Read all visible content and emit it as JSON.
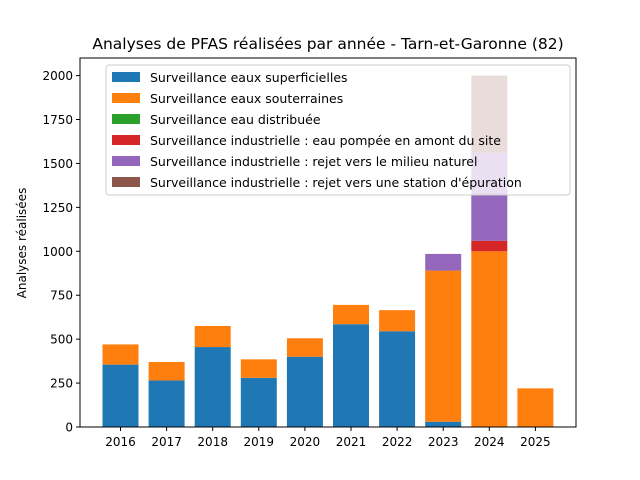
{
  "chart_data": {
    "type": "bar",
    "stacked": true,
    "title": "Analyses de PFAS réalisées par année - Tarn-et-Garonne (82)",
    "xlabel": "",
    "ylabel": "Analyses réalisées",
    "categories": [
      "2016",
      "2017",
      "2018",
      "2019",
      "2020",
      "2021",
      "2022",
      "2023",
      "2024",
      "2025"
    ],
    "ylim": [
      0,
      2100
    ],
    "yticks": [
      0,
      250,
      500,
      750,
      1000,
      1250,
      1500,
      1750,
      2000
    ],
    "grid": false,
    "legend_position": "top",
    "series": [
      {
        "name": "Surveillance eaux superficielles",
        "color": "#1f77b4",
        "values": [
          355,
          265,
          455,
          280,
          400,
          585,
          545,
          30,
          0,
          0
        ]
      },
      {
        "name": "Surveillance eaux souterraines",
        "color": "#ff7f0e",
        "values": [
          115,
          105,
          120,
          105,
          105,
          110,
          120,
          860,
          1000,
          220
        ]
      },
      {
        "name": "Surveillance eau distribuée",
        "color": "#2ca02c",
        "values": [
          0,
          0,
          0,
          0,
          0,
          0,
          0,
          0,
          0,
          0
        ]
      },
      {
        "name": "Surveillance industrielle : eau pompée en amont du site",
        "color": "#d62728",
        "values": [
          0,
          0,
          0,
          0,
          0,
          0,
          0,
          0,
          60,
          0
        ]
      },
      {
        "name": "Surveillance industrielle : rejet vers le milieu naturel",
        "color": "#9467bd",
        "values": [
          0,
          0,
          0,
          0,
          0,
          0,
          0,
          95,
          500,
          0
        ]
      },
      {
        "name": "Surveillance industrielle : rejet vers une station d'épuration",
        "color": "#8c564b",
        "values": [
          0,
          0,
          0,
          0,
          0,
          0,
          0,
          0,
          440,
          0
        ]
      }
    ]
  }
}
